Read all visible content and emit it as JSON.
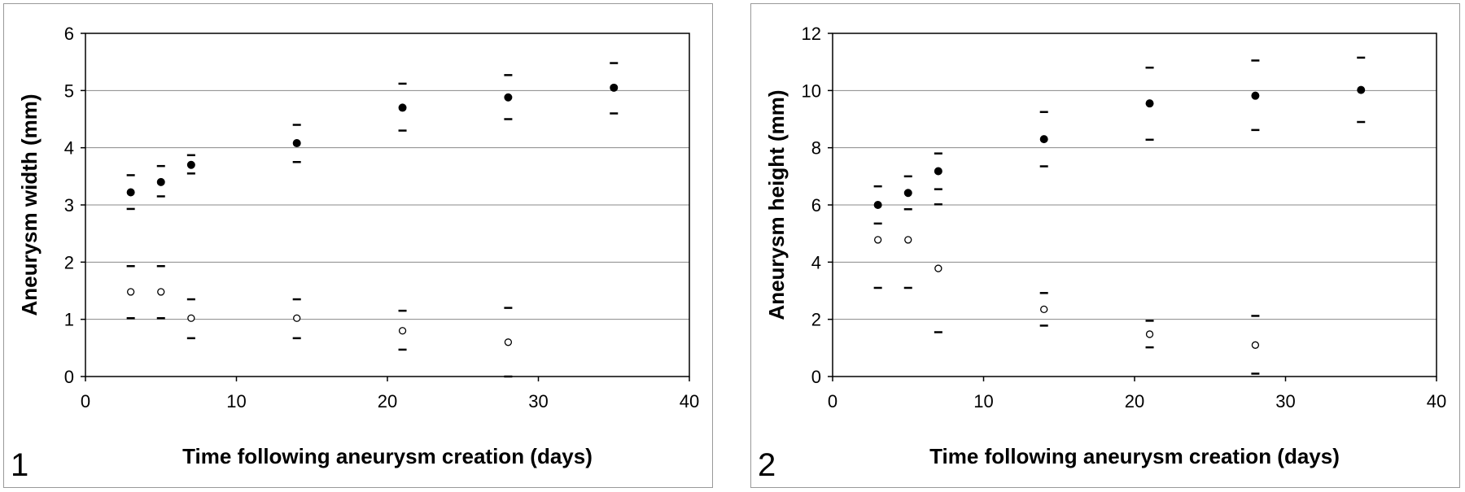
{
  "colors": {
    "grid": "#888888",
    "frame": "#000000",
    "marker": "#000000",
    "background": "#ffffff"
  },
  "chart_data": [
    {
      "type": "scatter",
      "panel_label": "1",
      "xlabel": "Time following aneurysm creation (days)",
      "ylabel": "Aneurysm width (mm)",
      "xlim": [
        0,
        40
      ],
      "ylim": [
        0,
        6
      ],
      "xticks": [
        "0",
        "10",
        "20",
        "30",
        "40"
      ],
      "yticks": [
        "0",
        "1",
        "2",
        "3",
        "4",
        "5",
        "6"
      ],
      "grid": true,
      "series": [
        {
          "marker": "filled-circle",
          "points": [
            {
              "x": 3,
              "y": 3.22,
              "lo": 2.93,
              "hi": 3.52
            },
            {
              "x": 5,
              "y": 3.4,
              "lo": 3.15,
              "hi": 3.68
            },
            {
              "x": 7,
              "y": 3.7,
              "lo": 3.55,
              "hi": 3.87
            },
            {
              "x": 14,
              "y": 4.08,
              "lo": 3.75,
              "hi": 4.4
            },
            {
              "x": 21,
              "y": 4.7,
              "lo": 4.3,
              "hi": 5.12
            },
            {
              "x": 28,
              "y": 4.88,
              "lo": 4.5,
              "hi": 5.27
            },
            {
              "x": 35,
              "y": 5.05,
              "lo": 4.6,
              "hi": 5.48
            }
          ]
        },
        {
          "marker": "open-circle",
          "points": [
            {
              "x": 3,
              "y": 1.48,
              "lo": 1.02,
              "hi": 1.93
            },
            {
              "x": 5,
              "y": 1.48,
              "lo": 1.02,
              "hi": 1.93
            },
            {
              "x": 7,
              "y": 1.02,
              "lo": 0.67,
              "hi": 1.35
            },
            {
              "x": 14,
              "y": 1.02,
              "lo": 0.67,
              "hi": 1.35
            },
            {
              "x": 21,
              "y": 0.8,
              "lo": 0.47,
              "hi": 1.15
            },
            {
              "x": 28,
              "y": 0.6,
              "lo": 0.0,
              "hi": 1.2
            }
          ]
        }
      ]
    },
    {
      "type": "scatter",
      "panel_label": "2",
      "xlabel": "Time following aneurysm creation (days)",
      "ylabel": "Aneurysm height (mm)",
      "xlim": [
        0,
        40
      ],
      "ylim": [
        0,
        12
      ],
      "xticks": [
        "0",
        "10",
        "20",
        "30",
        "40"
      ],
      "yticks": [
        "0",
        "2",
        "4",
        "6",
        "8",
        "10",
        "12"
      ],
      "grid": true,
      "series": [
        {
          "marker": "filled-circle",
          "points": [
            {
              "x": 3,
              "y": 6.0,
              "lo": 5.35,
              "hi": 6.65
            },
            {
              "x": 5,
              "y": 6.42,
              "lo": 5.85,
              "hi": 7.0
            },
            {
              "x": 7,
              "y": 7.18,
              "lo": 6.55,
              "hi": 7.8
            },
            {
              "x": 14,
              "y": 8.3,
              "lo": 7.35,
              "hi": 9.25
            },
            {
              "x": 21,
              "y": 9.55,
              "lo": 8.28,
              "hi": 10.8
            },
            {
              "x": 28,
              "y": 9.82,
              "lo": 8.62,
              "hi": 11.05
            },
            {
              "x": 35,
              "y": 10.02,
              "lo": 8.9,
              "hi": 11.15
            }
          ]
        },
        {
          "marker": "open-circle",
          "points": [
            {
              "x": 3,
              "y": 4.78,
              "lo": 3.1,
              "hi": null
            },
            {
              "x": 5,
              "y": 4.78,
              "lo": 3.1,
              "hi": null
            },
            {
              "x": 7,
              "y": 3.78,
              "lo": 1.55,
              "hi": 6.02
            },
            {
              "x": 14,
              "y": 2.35,
              "lo": 1.78,
              "hi": 2.92
            },
            {
              "x": 21,
              "y": 1.48,
              "lo": 1.02,
              "hi": 1.95
            },
            {
              "x": 28,
              "y": 1.1,
              "lo": 0.1,
              "hi": 2.12
            }
          ]
        }
      ]
    }
  ]
}
